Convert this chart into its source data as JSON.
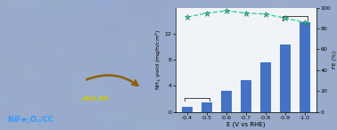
{
  "x_labels": [
    "-0.4",
    "-0.5",
    "-0.6",
    "-0.7",
    "-0.8",
    "-0.9",
    "-1.0"
  ],
  "x_vals": [
    -0.4,
    -0.5,
    -0.6,
    -0.7,
    -0.8,
    -0.9,
    -1.0
  ],
  "nh3_yield": [
    0.7,
    1.4,
    3.2,
    4.9,
    7.6,
    10.3,
    13.8
  ],
  "nh3_ylim": [
    0,
    16
  ],
  "nh3_yticks": [
    0,
    4,
    8,
    12
  ],
  "fe_values": [
    91,
    95,
    97,
    95,
    94,
    90,
    86
  ],
  "fe_ylim": [
    0,
    100
  ],
  "fe_yticks": [
    0,
    20,
    40,
    60,
    80,
    100
  ],
  "bar_color": "#4472C4",
  "line_color": "#3BCCA0",
  "marker_color": "#3BCCA0",
  "marker_edge_color": "#1A7A5A",
  "xlabel": "E (V vs RHE)",
  "ylabel_left": "NH$_3$ yield (mg/h/cm$^2$)",
  "ylabel_right": "FE (%)",
  "bg_color": "#B8C8D8",
  "chart_bg": "#F0F4F8",
  "bar_width": 0.55
}
